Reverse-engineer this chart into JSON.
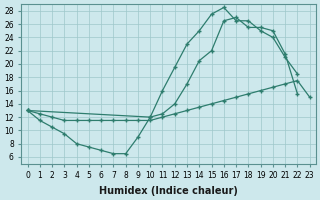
{
  "line1_x": [
    0,
    1,
    2,
    3,
    4,
    5,
    6,
    7,
    8,
    9,
    10,
    11,
    12,
    13,
    14,
    15,
    16,
    17,
    18,
    19,
    20,
    21,
    22
  ],
  "line1_y": [
    13,
    11.5,
    10.5,
    9.5,
    8.0,
    7.5,
    7.0,
    6.5,
    6.5,
    9.0,
    12.0,
    16.0,
    19.5,
    23.0,
    25.0,
    27.5,
    28.5,
    26.5,
    26.5,
    25.0,
    24.0,
    21.0,
    18.5
  ],
  "line2_x": [
    0,
    10,
    11,
    12,
    13,
    14,
    15,
    16,
    17,
    18,
    19,
    20,
    21,
    22
  ],
  "line2_y": [
    13,
    12.0,
    12.5,
    14.0,
    17.0,
    20.5,
    22.0,
    26.5,
    27.0,
    25.5,
    25.5,
    25.0,
    21.5,
    15.5
  ],
  "line3_x": [
    0,
    1,
    2,
    3,
    4,
    5,
    6,
    7,
    8,
    9,
    10,
    11,
    12,
    13,
    14,
    15,
    16,
    17,
    18,
    19,
    20,
    21,
    22,
    23
  ],
  "line3_y": [
    13,
    12.5,
    12.0,
    11.5,
    11.5,
    11.5,
    11.5,
    11.5,
    11.5,
    11.5,
    11.5,
    12.0,
    12.5,
    13.0,
    13.5,
    14.0,
    14.5,
    15.0,
    15.5,
    16.0,
    16.5,
    17.0,
    17.5,
    15.0
  ],
  "color": "#2e7d6e",
  "bg_color": "#cde8ec",
  "grid_color": "#9ec8ca",
  "xlabel": "Humidex (Indice chaleur)",
  "xlim": [
    -0.5,
    23.5
  ],
  "ylim": [
    5,
    29
  ],
  "yticks": [
    6,
    8,
    10,
    12,
    14,
    16,
    18,
    20,
    22,
    24,
    26,
    28
  ],
  "xticks": [
    0,
    1,
    2,
    3,
    4,
    5,
    6,
    7,
    8,
    9,
    10,
    11,
    12,
    13,
    14,
    15,
    16,
    17,
    18,
    19,
    20,
    21,
    22,
    23
  ],
  "tick_fontsize": 5.5,
  "xlabel_fontsize": 7
}
